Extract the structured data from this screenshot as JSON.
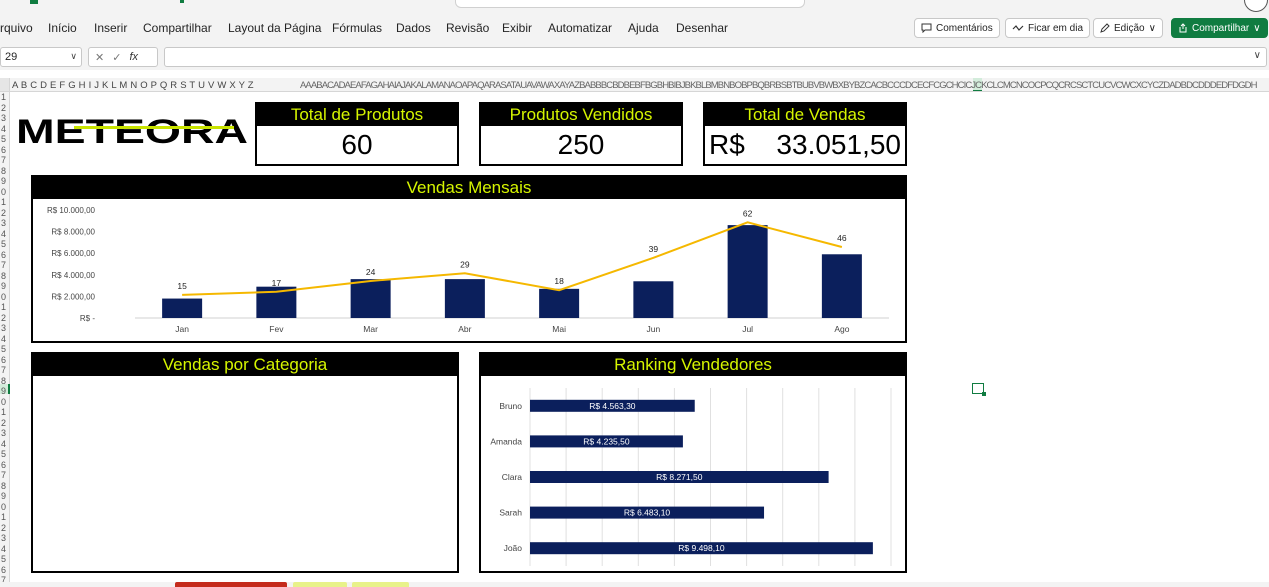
{
  "ribbon": {
    "file_label": "rquivo",
    "menu": [
      "Início",
      "Inserir",
      "Compartilhar",
      "Layout da Página",
      "Fórmulas",
      "Dados",
      "Revisão",
      "Exibir",
      "Automatizar",
      "Ajuda",
      "Desenhar"
    ],
    "comments_label": "Comentários",
    "catchup_label": "Ficar em dia",
    "editing_label": "Edição",
    "share_label": "Compartilhar"
  },
  "formula_bar": {
    "name_box": "29",
    "fx_label": "fx",
    "formula": ""
  },
  "grid": {
    "columns_start": "A B C D E F G H I J K L M N O P Q R S T U V W X Y Z",
    "columns_rest": "AAABACADAEAFAGAHAIAJAKALAMANAOAPAQARASATAUAVAWAXAYAZBABBBCBDBEBFBGBHBIBJBKBLBMBNBOBPBQBRBSBTBUBVBWBXBYBZCACBCCCDCECFCGCHCICJCKCLCMCNCOCPCQCRCSCTCUCVCWCXCYCZDADBDCDDDEDFDGDH",
    "rows": "1\n2\n3\n4\n5\n6\n7\n8\n9\n0\n1\n2\n3\n4\n5\n6\n7\n8\n9\n0\n1\n2\n3\n4\n5\n6\n7\n8\n9\n0\n1\n2\n3\n4\n5\n6\n7\n8\n9\n0\n1\n2\n3\n4\n5\n6\n7"
  },
  "dashboard": {
    "logo_text": "METEORA",
    "kpis": {
      "total_produtos": {
        "title": "Total de Produtos",
        "value": "60"
      },
      "produtos_vendidos": {
        "title": "Produtos Vendidos",
        "value": "250"
      },
      "total_vendas": {
        "title": "Total de Vendas",
        "currency": "R$",
        "value": "33.051,50"
      }
    },
    "monthly_title": "Vendas Mensais",
    "category_title": "Vendas por Categoria",
    "ranking_title": "Ranking Vendedores"
  },
  "colors": {
    "header_bg": "#000000",
    "header_text": "#d6f500",
    "bar": "#0b1f5c",
    "line": "#f5b800",
    "excel_green": "#107c41"
  },
  "chart_data": [
    {
      "type": "bar",
      "title": "Vendas Mensais",
      "categories": [
        "Jan",
        "Fev",
        "Mar",
        "Abr",
        "Mai",
        "Jun",
        "Jul",
        "Ago"
      ],
      "yticks": [
        "R$ -",
        "R$ 2.000,00",
        "R$ 4.000,00",
        "R$ 6.000,00",
        "R$ 8.000,00",
        "R$ 10.000,00"
      ],
      "ylim": [
        0,
        10000
      ],
      "series": [
        {
          "type": "bar",
          "values": [
            1800,
            2900,
            3600,
            3600,
            2700,
            3400,
            8600,
            5900
          ]
        },
        {
          "type": "line",
          "axis": "secondary",
          "values": [
            15,
            17,
            24,
            29,
            18,
            39,
            62,
            46
          ],
          "labels": [
            "15",
            "17",
            "24",
            "29",
            "18",
            "39",
            "62",
            "46"
          ]
        }
      ]
    },
    {
      "type": "bar",
      "orientation": "horizontal",
      "title": "Ranking Vendedores",
      "categories": [
        "Bruno",
        "Amanda",
        "Clara",
        "Sarah",
        "João"
      ],
      "values": [
        4563.3,
        4235.5,
        8271.5,
        6483.1,
        9498.1
      ],
      "labels": [
        "R$ 4.563,30",
        "R$ 4.235,50",
        "R$ 8.271,50",
        "R$ 6.483,10",
        "R$ 9.498,10"
      ],
      "xlim": [
        0,
        10000
      ]
    }
  ]
}
